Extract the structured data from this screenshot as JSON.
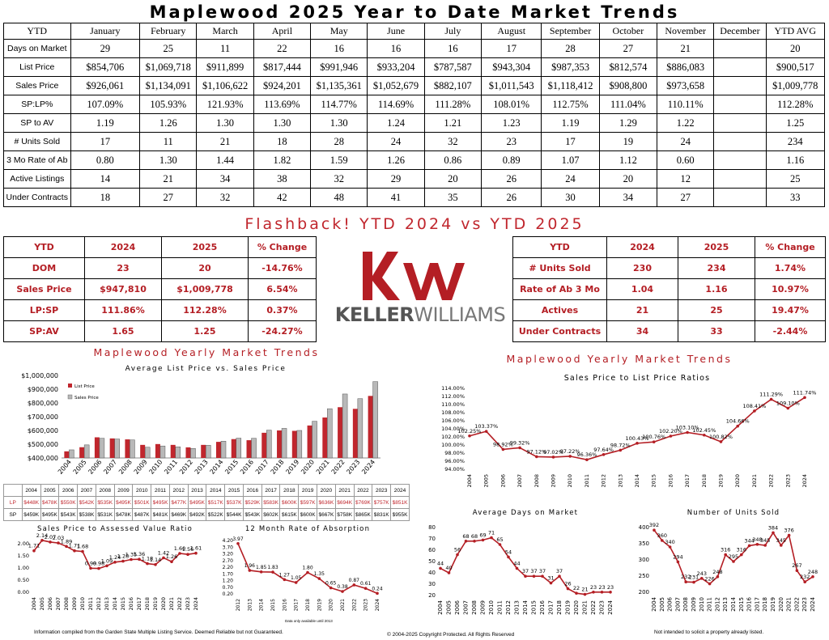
{
  "page_title": "Maplewood 2025 Year to Date Market Trends",
  "main_table": {
    "columns": [
      "YTD",
      "January",
      "February",
      "March",
      "April",
      "May",
      "June",
      "July",
      "August",
      "September",
      "October",
      "November",
      "December",
      "YTD AVG"
    ],
    "rows": [
      [
        "Days on Market",
        "29",
        "25",
        "11",
        "22",
        "16",
        "16",
        "16",
        "17",
        "28",
        "27",
        "21",
        "",
        "20"
      ],
      [
        "List Price",
        "$854,706",
        "$1,069,718",
        "$911,899",
        "$817,444",
        "$991,946",
        "$933,204",
        "$787,587",
        "$943,304",
        "$987,353",
        "$812,574",
        "$886,083",
        "",
        "$900,517"
      ],
      [
        "Sales Price",
        "$926,061",
        "$1,134,091",
        "$1,106,622",
        "$924,201",
        "$1,135,361",
        "$1,052,679",
        "$882,107",
        "$1,011,543",
        "$1,118,412",
        "$908,800",
        "$973,658",
        "",
        "$1,009,778"
      ],
      [
        "SP:LP%",
        "107.09%",
        "105.93%",
        "121.93%",
        "113.69%",
        "114.77%",
        "114.69%",
        "111.28%",
        "108.01%",
        "112.75%",
        "111.04%",
        "110.11%",
        "",
        "112.28%"
      ],
      [
        "SP to AV",
        "1.19",
        "1.26",
        "1.30",
        "1.30",
        "1.30",
        "1.24",
        "1.21",
        "1.23",
        "1.19",
        "1.29",
        "1.22",
        "",
        "1.25"
      ],
      [
        "# Units Sold",
        "17",
        "11",
        "21",
        "18",
        "28",
        "24",
        "32",
        "23",
        "17",
        "19",
        "24",
        "",
        "234"
      ],
      [
        "3 Mo Rate of Ab",
        "0.80",
        "1.30",
        "1.44",
        "1.82",
        "1.59",
        "1.26",
        "0.86",
        "0.89",
        "1.07",
        "1.12",
        "0.60",
        "",
        "1.16"
      ],
      [
        "Active Listings",
        "14",
        "21",
        "34",
        "38",
        "32",
        "29",
        "20",
        "26",
        "24",
        "20",
        "12",
        "",
        "25"
      ],
      [
        "Under Contracts",
        "18",
        "27",
        "32",
        "42",
        "48",
        "41",
        "35",
        "26",
        "30",
        "34",
        "27",
        "",
        "33"
      ]
    ]
  },
  "flashback_title": "Flashback!  YTD 2024 vs YTD 2025",
  "compare_left": {
    "headers": [
      "YTD",
      "2024",
      "2025",
      "% Change"
    ],
    "rows": [
      [
        "DOM",
        "23",
        "20",
        "-14.76%"
      ],
      [
        "Sales Price",
        "$947,810",
        "$1,009,778",
        "6.54%"
      ],
      [
        "LP:SP",
        "111.86%",
        "112.28%",
        "0.37%"
      ],
      [
        "SP:AV",
        "1.65",
        "1.25",
        "-24.27%"
      ]
    ]
  },
  "compare_right": {
    "headers": [
      "YTD",
      "2024",
      "2025",
      "% Change"
    ],
    "rows": [
      [
        "# Units Sold",
        "230",
        "234",
        "1.74%"
      ],
      [
        "Rate of Ab 3 Mo",
        "1.04",
        "1.16",
        "10.97%"
      ],
      [
        "Actives",
        "21",
        "25",
        "19.47%"
      ],
      [
        "Under Contracts",
        "34",
        "33",
        "-2.44%"
      ]
    ]
  },
  "logo": {
    "mark": "kw",
    "brand_bold": "KELLER",
    "brand_light": "WILLIAMS",
    "color": "#b41e24"
  },
  "left_section_title": "Maplewood Yearly Market Trends",
  "right_section_title": "Maplewood Yearly Market Trends",
  "avg_table_labels": [
    "LP",
    "SP"
  ],
  "footer": {
    "left": "Information compiled from the Garden State Multiple Listing Service.  Deemed Reliable but not Guaranteed.",
    "center": "© 2004-2025 Copyright Protected.  All Rights Reserved",
    "right": "Not intended to solicit a property already listed.",
    "note": "Data only available until 2013"
  },
  "colors": {
    "accent": "#b41e24",
    "bar_list": "#c0262d",
    "bar_sales": "#b8b8b8",
    "line": "#b41e24"
  },
  "chart_data": [
    {
      "id": "list-vs-sales",
      "type": "bar",
      "title": "Average List Price vs. Sales Price",
      "categories": [
        "2004",
        "2005",
        "2006",
        "2007",
        "2008",
        "2009",
        "2010",
        "2011",
        "2012",
        "2013",
        "2014",
        "2015",
        "2016",
        "2017",
        "2018",
        "2019",
        "2020",
        "2021",
        "2022",
        "2023",
        "2024"
      ],
      "series": [
        {
          "name": "List Price",
          "values": [
            448,
            478,
            550,
            542,
            535,
            495,
            501,
            495,
            477,
            495,
            517,
            537,
            529,
            583,
            600,
            597,
            636,
            694,
            769,
            757,
            851
          ]
        },
        {
          "name": "Sales Price",
          "values": [
            459,
            495,
            543,
            538,
            531,
            478,
            487,
            481,
            469,
            492,
            522,
            544,
            543,
            602,
            615,
            600,
            667,
            758,
            865,
            831,
            955
          ]
        }
      ],
      "ylim": [
        400000,
        1000000
      ],
      "yticks": [
        "$400,000",
        "$500,000",
        "$600,000",
        "$700,000",
        "$800,000",
        "$900,000",
        "$1,000,000"
      ],
      "table_rows": [
        [
          "$448K",
          "$478K",
          "$550K",
          "$542K",
          "$535K",
          "$495K",
          "$501K",
          "$495K",
          "$477K",
          "$495K",
          "$517K",
          "$537K",
          "$529K",
          "$583K",
          "$600K",
          "$597K",
          "$636K",
          "$694K",
          "$769K",
          "$757K",
          "$851K"
        ],
        [
          "$459K",
          "$495K",
          "$543K",
          "$538K",
          "$531K",
          "$478K",
          "$487K",
          "$481K",
          "$469K",
          "$492K",
          "$522K",
          "$544K",
          "$543K",
          "$602K",
          "$615K",
          "$600K",
          "$667K",
          "$758K",
          "$865K",
          "$831K",
          "$955K"
        ]
      ],
      "legend": "top-left"
    },
    {
      "id": "sp-lp-ratio",
      "type": "line",
      "title": "Sales Price to List Price Ratios",
      "x": [
        "2004",
        "2005",
        "2006",
        "2007",
        "2008",
        "2009",
        "2010",
        "2011",
        "2012",
        "2013",
        "2014",
        "2015",
        "2016",
        "2017",
        "2018",
        "2019",
        "2020",
        "2021",
        "2022",
        "2023",
        "2024"
      ],
      "values": [
        102.25,
        103.37,
        98.92,
        99.32,
        97.12,
        97.02,
        97.22,
        96.36,
        97.64,
        98.72,
        100.43,
        100.76,
        102.2,
        103.1,
        102.45,
        100.82,
        104.66,
        108.41,
        111.29,
        109.1,
        111.74
      ],
      "labels": [
        "102.25%",
        "103.37%",
        "98.92%",
        "99.32%",
        "97.12%",
        "97.02%",
        "97.22%",
        "96.36%",
        "97.64%",
        "98.72%",
        "100.43%",
        "100.76%",
        "102.20%",
        "103.10%",
        "102.45%",
        "100.82%",
        "104.66%",
        "108.41%",
        "111.29%",
        "109.10%",
        "111.74%"
      ],
      "ylim": [
        94,
        114
      ],
      "yticks": [
        "94.00%",
        "96.00%",
        "98.00%",
        "100.00%",
        "102.00%",
        "104.00%",
        "106.00%",
        "108.00%",
        "110.00%",
        "112.00%",
        "114.00%"
      ]
    },
    {
      "id": "sp-av-ratio",
      "type": "line",
      "title": "Sales Price to Assessed Value Ratio",
      "x": [
        "2004",
        "2005",
        "2006",
        "2007",
        "2008",
        "2009",
        "2010",
        "2011",
        "2012",
        "2013",
        "2014",
        "2015",
        "2016",
        "2017",
        "2018",
        "2019",
        "2020",
        "2021",
        "2022",
        "2023",
        "2024"
      ],
      "values": [
        1.71,
        2.14,
        2.07,
        2.03,
        1.89,
        1.71,
        1.68,
        0.99,
        0.98,
        1.09,
        1.24,
        1.28,
        1.35,
        1.36,
        1.18,
        1.14,
        1.42,
        1.26,
        1.6,
        1.56,
        1.61
      ],
      "labels": [
        "1.71",
        "2.14",
        "2.07",
        "2.03",
        "1.89",
        "1.71",
        "1.68",
        "0.99",
        "0.98",
        "1.09",
        "1.24",
        "1.28",
        "1.35",
        "1.36",
        "1.18",
        "1.14",
        "1.42",
        "1.26",
        "1.60",
        "1.56",
        "1.61"
      ],
      "ylim": [
        0,
        2
      ],
      "yticks": [
        "0.00",
        "0.50",
        "1.00",
        "1.50",
        "2.00"
      ]
    },
    {
      "id": "rate-of-absorption",
      "type": "line",
      "title": "12 Month Rate of Absorption",
      "x": [
        "2012",
        "2013",
        "2014",
        "2015",
        "2016",
        "2017",
        "2018",
        "2019",
        "2020",
        "2021",
        "2022",
        "2023",
        "2024"
      ],
      "values": [
        3.97,
        1.96,
        1.85,
        1.83,
        1.27,
        1.05,
        1.8,
        1.35,
        0.65,
        0.38,
        0.87,
        0.61,
        0.24
      ],
      "labels": [
        "3.97",
        "1.96",
        "1.85",
        "1.83",
        "1.27",
        "1.05",
        "1.80",
        "1.35",
        "0.65",
        "0.38",
        "0.87",
        "0.61",
        "0.24"
      ],
      "ylim": [
        0.2,
        4.2
      ],
      "yticks": [
        "0.20",
        "0.70",
        "1.20",
        "1.70",
        "2.20",
        "2.70",
        "3.20",
        "3.70",
        "4.20"
      ]
    },
    {
      "id": "avg-days-on-market",
      "type": "line",
      "title": "Average Days on Market",
      "x": [
        "2004",
        "2005",
        "2006",
        "2007",
        "2008",
        "2009",
        "2010",
        "2011",
        "2012",
        "2013",
        "2014",
        "2015",
        "2016",
        "2017",
        "2018",
        "2019",
        "2020",
        "2021",
        "2022",
        "2023",
        "2024"
      ],
      "values": [
        44,
        40,
        56,
        68,
        68,
        69,
        71,
        65,
        54,
        44,
        37,
        37,
        37,
        31,
        37,
        26,
        22,
        21,
        23,
        23,
        23
      ],
      "labels": [
        "44",
        "40",
        "56",
        "68",
        "68",
        "69",
        "71",
        "65",
        "54",
        "44",
        "37",
        "37",
        "37",
        "31",
        "37",
        "26",
        "22",
        "21",
        "23",
        "23",
        "23"
      ],
      "ylim": [
        20,
        80
      ],
      "yticks": [
        "20",
        "30",
        "40",
        "50",
        "60",
        "70",
        "80"
      ]
    },
    {
      "id": "units-sold",
      "type": "line",
      "title": "Number of Units Sold",
      "x": [
        "2004",
        "2005",
        "2006",
        "2007",
        "2008",
        "2009",
        "2010",
        "2011",
        "2012",
        "2013",
        "2014",
        "2015",
        "2016",
        "2017",
        "2018",
        "2019",
        "2020",
        "2021",
        "2022",
        "2023",
        "2024"
      ],
      "values": [
        392,
        360,
        340,
        294,
        232,
        231,
        243,
        226,
        248,
        316,
        295,
        316,
        344,
        348,
        345,
        384,
        345,
        376,
        267,
        232,
        248
      ],
      "labels": [
        "392",
        "360",
        "340",
        "294",
        "232",
        "231",
        "243",
        "226",
        "248",
        "316",
        "295",
        "316",
        "344",
        "348",
        "345",
        "384",
        "345",
        "376",
        "267",
        "232",
        "248"
      ],
      "ylim": [
        200,
        400
      ],
      "yticks": [
        "200",
        "250",
        "300",
        "350",
        "400"
      ]
    }
  ]
}
